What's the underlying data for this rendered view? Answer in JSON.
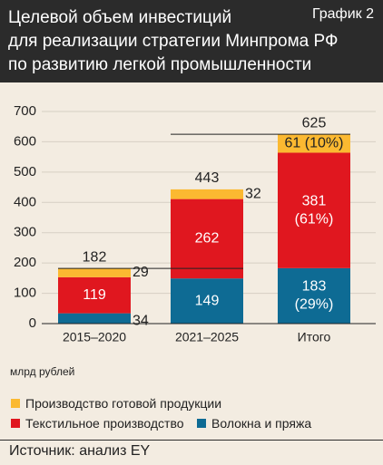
{
  "header": {
    "title_lines": [
      "Целевой объем инвестиций",
      "для реализации стратегии Минпрома РФ",
      "по развитию легкой промышленности"
    ],
    "graph_label": "График 2"
  },
  "chart_data": {
    "type": "bar",
    "stacked": true,
    "categories": [
      "2015–2020",
      "2021–2025",
      "Итого"
    ],
    "ylim": [
      0,
      700
    ],
    "yticks": [
      "0",
      "100",
      "200",
      "300",
      "400",
      "500",
      "600",
      "700"
    ],
    "unit_label": "млрд рублей",
    "totals": [
      "182",
      "443",
      "625"
    ],
    "series": [
      {
        "name": "Волокна и пряжа",
        "color": "#0e6b94",
        "values": [
          34,
          149,
          183
        ],
        "labels": [
          "34",
          "149",
          "183\n(29%)"
        ]
      },
      {
        "name": "Текстильное производство",
        "color": "#e0171f",
        "values": [
          119,
          262,
          381
        ],
        "labels": [
          "119",
          "262",
          "381\n(61%)"
        ]
      },
      {
        "name": "Производство готовой продукции",
        "color": "#fbb931",
        "values": [
          29,
          32,
          61
        ],
        "labels": [
          "29",
          "32",
          "61 (10%)"
        ]
      }
    ]
  },
  "source": "Источник: анализ EY"
}
